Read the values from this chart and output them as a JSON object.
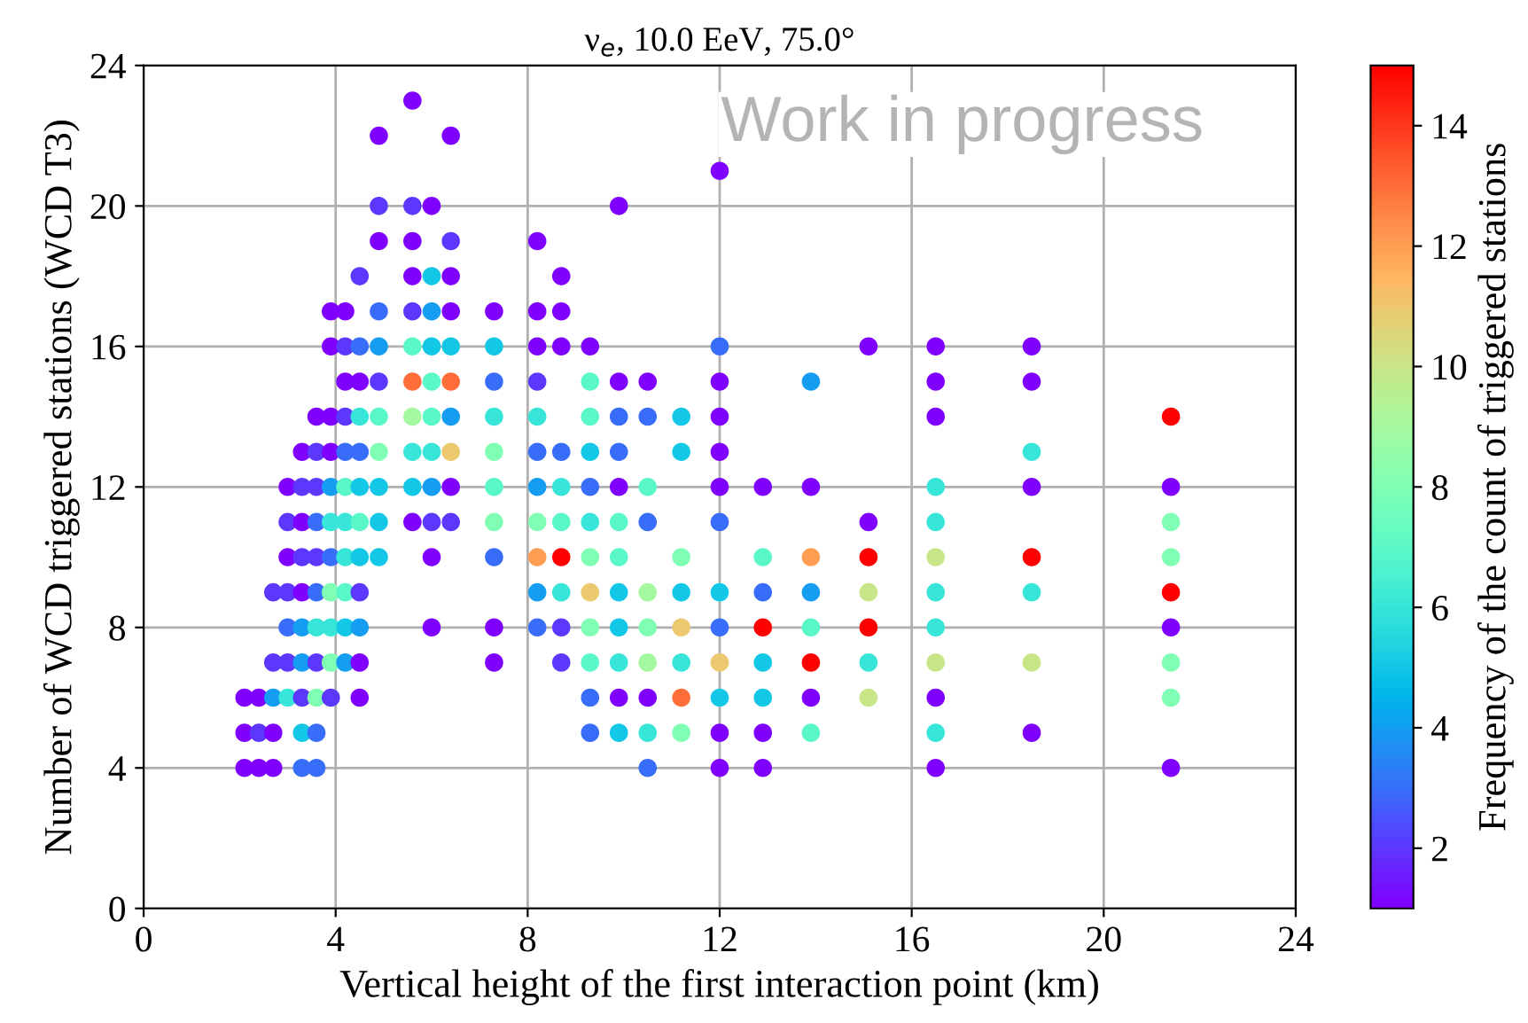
{
  "chart_data": {
    "type": "scatter",
    "title": "ν$_{e}$, 10.0 EeV, 75.0°",
    "xlabel": "Vertical height of the first interaction point (km)",
    "ylabel": "Number of WCD triggered stations (WCD T3)",
    "clabel": "Frequency of the count of triggered stations",
    "annotations": [
      "Work in progress"
    ],
    "xlim": [
      0,
      24
    ],
    "xticks": [
      0,
      4,
      8,
      12,
      16,
      20,
      24
    ],
    "ylim": [
      0,
      24
    ],
    "yticks": [
      0,
      4,
      8,
      12,
      16,
      20,
      24
    ],
    "clim": [
      1,
      15
    ],
    "cticks": [
      2,
      4,
      6,
      8,
      10,
      12,
      14
    ],
    "grid": true,
    "marker": "circle",
    "legend": false,
    "series": [
      {
        "x": [
          2.1,
          2.1,
          2.1,
          2.4,
          2.4,
          2.4,
          2.7,
          2.7,
          2.7,
          2.7,
          2.7,
          3.0,
          3.0,
          3.0,
          3.0,
          3.0,
          3.0,
          3.0,
          3.3,
          3.3,
          3.3,
          3.3,
          3.3,
          3.3,
          3.3,
          3.3,
          3.3,
          3.3,
          3.6,
          3.6,
          3.6,
          3.6,
          3.6,
          3.6,
          3.6,
          3.6,
          3.6,
          3.6,
          3.6,
          3.9,
          3.9,
          3.9,
          3.9,
          3.9,
          3.9,
          3.9,
          3.9,
          3.9,
          3.9,
          3.9,
          4.2,
          4.2,
          4.2,
          4.2,
          4.2,
          4.2,
          4.2,
          4.2,
          4.2,
          4.2,
          4.2,
          4.5,
          4.5,
          4.5,
          4.5,
          4.5,
          4.5,
          4.5,
          4.5,
          4.5,
          4.5,
          4.5,
          4.5,
          4.9,
          4.9,
          4.9,
          4.9,
          4.9,
          4.9,
          4.9,
          4.9,
          4.9,
          4.9,
          4.9,
          5.6,
          5.6,
          5.6,
          5.6,
          5.6,
          5.6,
          5.6,
          5.6,
          5.6,
          5.6,
          5.6,
          6.0,
          6.0,
          6.0,
          6.0,
          6.0,
          6.0,
          6.0,
          6.0,
          6.0,
          6.0,
          6.0,
          6.4,
          6.4,
          6.4,
          6.4,
          6.4,
          6.4,
          6.4,
          6.4,
          6.4,
          6.4,
          7.3,
          7.3,
          7.3,
          7.3,
          7.3,
          7.3,
          7.3,
          7.3,
          7.3,
          7.3,
          8.2,
          8.2,
          8.2,
          8.2,
          8.2,
          8.2,
          8.2,
          8.2,
          8.2,
          8.2,
          8.2,
          8.7,
          8.7,
          8.7,
          8.7,
          8.7,
          8.7,
          8.7,
          8.7,
          8.7,
          8.7,
          9.3,
          9.3,
          9.3,
          9.3,
          9.3,
          9.3,
          9.3,
          9.3,
          9.3,
          9.3,
          9.3,
          9.3,
          9.9,
          9.9,
          9.9,
          9.9,
          9.9,
          9.9,
          9.9,
          9.9,
          9.9,
          9.9,
          9.9,
          9.9,
          10.5,
          10.5,
          10.5,
          10.5,
          10.5,
          10.5,
          10.5,
          10.5,
          10.5,
          10.5,
          11.2,
          11.2,
          11.2,
          11.2,
          11.2,
          11.2,
          11.2,
          11.2,
          12.0,
          12.0,
          12.0,
          12.0,
          12.0,
          12.0,
          12.0,
          12.0,
          12.0,
          12.0,
          12.0,
          12.0,
          12.0,
          12.9,
          12.9,
          12.9,
          12.9,
          12.9,
          12.9,
          12.9,
          12.9,
          13.9,
          13.9,
          13.9,
          13.9,
          13.9,
          13.9,
          13.9,
          13.9,
          15.1,
          15.1,
          15.1,
          15.1,
          15.1,
          15.1,
          15.1,
          16.5,
          16.5,
          16.5,
          16.5,
          16.5,
          16.5,
          16.5,
          16.5,
          16.5,
          16.5,
          16.5,
          16.5,
          18.5,
          18.5,
          18.5,
          18.5,
          18.5,
          18.5,
          18.5,
          18.5,
          21.4,
          21.4,
          21.4,
          21.4,
          21.4,
          21.4,
          21.4,
          21.4,
          21.4
        ],
        "values": [
          6,
          5,
          4,
          6,
          5,
          4,
          9,
          7,
          6,
          5,
          4,
          12,
          11,
          10,
          9,
          8,
          7,
          6,
          13,
          12,
          11,
          10,
          9,
          8,
          7,
          6,
          5,
          4,
          14,
          13,
          12,
          11,
          10,
          9,
          8,
          7,
          6,
          5,
          4,
          17,
          16,
          14,
          13,
          12,
          11,
          10,
          9,
          8,
          7,
          6,
          17,
          16,
          15,
          14,
          13,
          12,
          11,
          10,
          9,
          8,
          7,
          18,
          16,
          15,
          14,
          13,
          12,
          11,
          10,
          9,
          8,
          7,
          6,
          22,
          20,
          19,
          17,
          16,
          15,
          14,
          13,
          12,
          11,
          10,
          23,
          20,
          19,
          18,
          17,
          16,
          15,
          14,
          13,
          12,
          11,
          20,
          18,
          17,
          16,
          15,
          14,
          13,
          12,
          11,
          10,
          8,
          22,
          19,
          18,
          17,
          16,
          15,
          14,
          13,
          12,
          11,
          17,
          16,
          15,
          14,
          13,
          12,
          11,
          10,
          8,
          7,
          19,
          17,
          16,
          15,
          14,
          13,
          12,
          11,
          10,
          9,
          8,
          18,
          17,
          16,
          13,
          12,
          11,
          10,
          9,
          8,
          7,
          16,
          15,
          14,
          13,
          12,
          11,
          10,
          9,
          8,
          7,
          6,
          5,
          20,
          15,
          14,
          13,
          12,
          11,
          10,
          9,
          8,
          7,
          6,
          5,
          15,
          14,
          12,
          11,
          9,
          8,
          7,
          6,
          5,
          4,
          14,
          13,
          10,
          9,
          8,
          7,
          6,
          5,
          21,
          16,
          15,
          14,
          13,
          12,
          11,
          9,
          8,
          7,
          6,
          5,
          4,
          12,
          10,
          9,
          8,
          7,
          6,
          5,
          4,
          15,
          12,
          10,
          9,
          8,
          7,
          6,
          5,
          16,
          11,
          10,
          9,
          8,
          7,
          6,
          16,
          15,
          14,
          12,
          11,
          10,
          9,
          8,
          7,
          6,
          5,
          4,
          16,
          15,
          13,
          12,
          10,
          9,
          7,
          5,
          14,
          12,
          11,
          10,
          9,
          8,
          7,
          6,
          4
        ],
        "cvalues": [
          1,
          1,
          1,
          1,
          2,
          1,
          2,
          2,
          4,
          1,
          1,
          1,
          2,
          1,
          2,
          3,
          2,
          6,
          1,
          2,
          1,
          2,
          1,
          4,
          4,
          2,
          5,
          3,
          1,
          2,
          2,
          3,
          2,
          3,
          6,
          2,
          8,
          3,
          3,
          1,
          1,
          1,
          1,
          4,
          6,
          3,
          8,
          6,
          8,
          2,
          1,
          2,
          1,
          2,
          3,
          7,
          6,
          6,
          7,
          5,
          4,
          2,
          3,
          1,
          6,
          3,
          5,
          7,
          5,
          2,
          4,
          1,
          1,
          1,
          2,
          1,
          3,
          4,
          2,
          7,
          8,
          5,
          5,
          5,
          1,
          2,
          1,
          1,
          2,
          7,
          13,
          9,
          6,
          5,
          1,
          1,
          5,
          4,
          5,
          7,
          7,
          6,
          4,
          2,
          1,
          1,
          1,
          2,
          1,
          1,
          5,
          13,
          4,
          11,
          1,
          2,
          1,
          5,
          3,
          6,
          8,
          7,
          8,
          3,
          1,
          1,
          1,
          1,
          1,
          2,
          6,
          3,
          4,
          8,
          12,
          4,
          3,
          1,
          1,
          1,
          3,
          6,
          7,
          15,
          6,
          2,
          2,
          1,
          7,
          7,
          5,
          3,
          6,
          8,
          11,
          8,
          7,
          3,
          3,
          1,
          1,
          3,
          3,
          1,
          7,
          7,
          5,
          5,
          6,
          1,
          5,
          1,
          3,
          7,
          3,
          9,
          8,
          9,
          1,
          6,
          3,
          5,
          5,
          8,
          5,
          11,
          6,
          13,
          8,
          1,
          3,
          1,
          1,
          1,
          1,
          3,
          5,
          3,
          11,
          5,
          1,
          1,
          1,
          7,
          3,
          15,
          5,
          5,
          1,
          1,
          4,
          1,
          12,
          4,
          7,
          15,
          1,
          7,
          1,
          1,
          15,
          10,
          15,
          6,
          10,
          1,
          1,
          1,
          6,
          6,
          10,
          6,
          6,
          10,
          1,
          6,
          1,
          1,
          1,
          6,
          1,
          15,
          6,
          10,
          1,
          15,
          1,
          8,
          8,
          15,
          1,
          8,
          8,
          1
        ]
      }
    ]
  }
}
